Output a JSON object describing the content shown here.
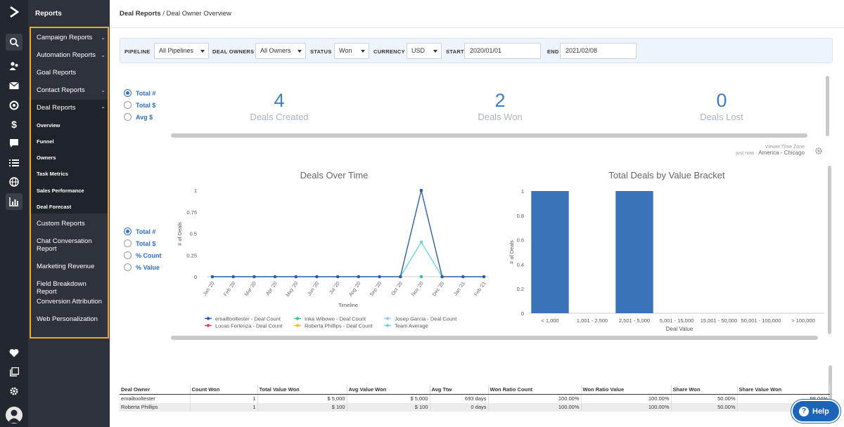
{
  "sidebar": {
    "title": "Reports",
    "items": [
      {
        "label": "Campaign Reports",
        "chevron": "down"
      },
      {
        "label": "Automation Reports",
        "chevron": "down"
      },
      {
        "label": "Goal Reports"
      },
      {
        "label": "Contact Reports",
        "chevron": "down"
      },
      {
        "label": "Deal Reports",
        "chevron": "up"
      },
      {
        "label": "Custom Reports"
      },
      {
        "label": "Chat Conversation Report"
      },
      {
        "label": "Marketing Revenue"
      },
      {
        "label": "Field Breakdown Report"
      },
      {
        "label": "Conversion Attribution"
      },
      {
        "label": "Web Personalization"
      }
    ],
    "deal_subitems": [
      "Overview",
      "Funnel",
      "Owners",
      "Task Metrics",
      "Sales Performance",
      "Deal Forecast"
    ]
  },
  "breadcrumb": {
    "parent": "Deal Reports",
    "sep": " / ",
    "current": "Deal Owner Overview"
  },
  "filters": {
    "pipeline_label": "PIPELINE",
    "pipeline_value": "All Pipelines",
    "owners_label": "DEAL OWNERS",
    "owners_value": "All Owners",
    "status_label": "STATUS",
    "status_value": "Won",
    "currency_label": "CURRENCY",
    "currency_value": "USD",
    "start_label": "START",
    "start_value": "2020/01/01",
    "end_label": "END",
    "end_value": "2021/02/08"
  },
  "kpi_radios": [
    {
      "label": "Total #",
      "checked": true
    },
    {
      "label": "Total $",
      "checked": false
    },
    {
      "label": "Avg $",
      "checked": false
    }
  ],
  "kpis": [
    {
      "value": "4",
      "label": "Deals Created"
    },
    {
      "value": "2",
      "label": "Deals Won"
    },
    {
      "value": "0",
      "label": "Deals Lost"
    }
  ],
  "timezone": {
    "label": "Viewer Time Zone",
    "updated": "just now",
    "dot": "·",
    "zone": "America - Chicago"
  },
  "chart_radios": [
    {
      "label": "Total #",
      "checked": true
    },
    {
      "label": "Total $",
      "checked": false
    },
    {
      "label": "% Count",
      "checked": false
    },
    {
      "label": "% Value",
      "checked": false
    }
  ],
  "chart_data": [
    {
      "type": "line",
      "title": "Deals Over Time",
      "xlabel": "Timeline",
      "ylabel": "# of Deals",
      "ylim": [
        0,
        1
      ],
      "yticks": [
        "0",
        "0.25",
        "0.5",
        "0.75",
        "1"
      ],
      "categories": [
        "Jan '20",
        "Feb '20",
        "Mar '20",
        "Apr '20",
        "May '20",
        "Jun '20",
        "Jul '20",
        "Aug '20",
        "Sep '20",
        "Oct '20",
        "Nov '20",
        "Dec '20",
        "Jan '21",
        "Feb '21"
      ],
      "series": [
        {
          "name": "emailtooltester - Deal Count",
          "color": "#2c5d9e",
          "values": [
            0,
            0,
            0,
            0,
            0,
            0,
            0,
            0,
            0,
            0,
            1,
            0,
            0,
            0
          ]
        },
        {
          "name": "Inka Wibowo - Deal Count",
          "color": "#3cc18c",
          "values": [
            null,
            null,
            null,
            null,
            null,
            null,
            null,
            null,
            null,
            null,
            0,
            null,
            null,
            null
          ]
        },
        {
          "name": "Josep Garcia - Deal Count",
          "color": "#9ecbe0",
          "values": [
            null,
            null,
            null,
            null,
            null,
            null,
            null,
            null,
            null,
            null,
            null,
            null,
            null,
            null
          ]
        },
        {
          "name": "Lucas Forlenza - Deal Count",
          "color": "#d14a6b",
          "values": [
            null,
            null,
            null,
            null,
            null,
            null,
            null,
            null,
            null,
            null,
            null,
            null,
            null,
            null
          ]
        },
        {
          "name": "Roberta Phillips - Deal Count",
          "color": "#f0c030",
          "values": [
            null,
            null,
            null,
            null,
            null,
            null,
            null,
            null,
            null,
            null,
            null,
            null,
            null,
            null
          ]
        },
        {
          "name": "Team Average",
          "color": "#6fd3dc",
          "values": [
            null,
            null,
            null,
            null,
            null,
            null,
            null,
            null,
            null,
            0,
            0.4,
            0,
            null,
            null
          ]
        }
      ]
    },
    {
      "type": "bar",
      "title": "Total Deals by Value Bracket",
      "xlabel": "Deal Value",
      "ylabel": "# of Deals",
      "ylim": [
        0,
        1
      ],
      "yticks": [
        "0",
        "0.2",
        "0.4",
        "0.6",
        "0.8",
        "1"
      ],
      "categories": [
        "< 1,000",
        "1,001 - 2,500",
        "2,501 - 5,000",
        "5,001 - 15,000",
        "15,001 - 50,000",
        "50,001 - 100,000",
        "> 100,000"
      ],
      "values": [
        1,
        0,
        1,
        0,
        0,
        0,
        0
      ],
      "color": "#3b73b9"
    }
  ],
  "table": {
    "headers": [
      "Deal Owner",
      "Count Won",
      "Total Value Won",
      "Avg Value Won",
      "Avg Ttw",
      "Won Ratio Count",
      "Won Ratio Value",
      "Share Won",
      "Share Value Won"
    ],
    "rows": [
      [
        "emailtooltester",
        "1",
        "$ 5,000",
        "$ 5,000",
        "693 days",
        "100.00%",
        "100.00%",
        "50.00%",
        "98.04%"
      ],
      [
        "Roberta Phillips",
        "1",
        "$ 100",
        "$ 100",
        "0 days",
        "100.00%",
        "100.00%",
        "50.00%",
        ""
      ]
    ]
  },
  "help": {
    "label": "Help",
    "icon": "?"
  }
}
